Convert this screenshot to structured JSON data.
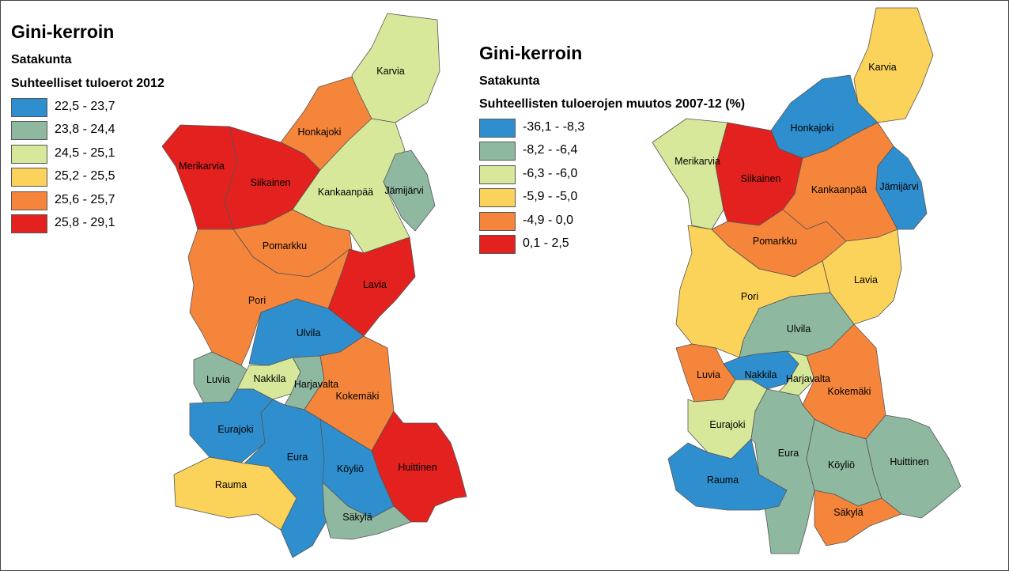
{
  "left_panel": {
    "title": "Gini-kerroin",
    "region": "Satakunta",
    "subtitle": "Suhteelliset tuloerot 2012",
    "legend": [
      {
        "label": "22,5 - 23,7",
        "color": "#2f8fce"
      },
      {
        "label": "23,8 - 24,4",
        "color": "#8fb8a0"
      },
      {
        "label": "24,5 - 25,1",
        "color": "#d8e89a"
      },
      {
        "label": "25,2 - 25,5",
        "color": "#fbd25a"
      },
      {
        "label": "25,6 - 25,7",
        "color": "#f5853a"
      },
      {
        "label": "25,8 - 29,1",
        "color": "#e3211e"
      }
    ],
    "municipalities": [
      {
        "name": "Karvia",
        "class": 2
      },
      {
        "name": "Honkajoki",
        "class": 4
      },
      {
        "name": "Merikarvia",
        "class": 5
      },
      {
        "name": "Siikainen",
        "class": 5
      },
      {
        "name": "Kankaanpää",
        "class": 2
      },
      {
        "name": "Jämijärvi",
        "class": 1
      },
      {
        "name": "Pomarkku",
        "class": 4
      },
      {
        "name": "Lavia",
        "class": 5
      },
      {
        "name": "Pori",
        "class": 4
      },
      {
        "name": "Ulvila",
        "class": 0
      },
      {
        "name": "Luvia",
        "class": 1
      },
      {
        "name": "Nakkila",
        "class": 2
      },
      {
        "name": "Harjavalta",
        "class": 1
      },
      {
        "name": "Kokemäki",
        "class": 4
      },
      {
        "name": "Eurajoki",
        "class": 0
      },
      {
        "name": "Eura",
        "class": 0
      },
      {
        "name": "Köyliö",
        "class": 0
      },
      {
        "name": "Huittinen",
        "class": 5
      },
      {
        "name": "Rauma",
        "class": 3
      },
      {
        "name": "Säkylä",
        "class": 1
      }
    ]
  },
  "right_panel": {
    "title": "Gini-kerroin",
    "region": "Satakunta",
    "subtitle": "Suhteellisten tuloerojen muutos 2007-12 (%)",
    "legend": [
      {
        "label": "-36,1 - -8,3",
        "color": "#2f8fce"
      },
      {
        "label": "-8,2 - -6,4",
        "color": "#8fb8a0"
      },
      {
        "label": "-6,3 - -6,0",
        "color": "#d8e89a"
      },
      {
        "label": "-5,9 - -5,0",
        "color": "#fbd25a"
      },
      {
        "label": "-4,9 - 0,0",
        "color": "#f5853a"
      },
      {
        "label": "0,1 - 2,5",
        "color": "#e3211e"
      }
    ],
    "municipalities": [
      {
        "name": "Karvia",
        "class": 3
      },
      {
        "name": "Honkajoki",
        "class": 0
      },
      {
        "name": "Merikarvia",
        "class": 2
      },
      {
        "name": "Siikainen",
        "class": 5
      },
      {
        "name": "Kankaanpää",
        "class": 4
      },
      {
        "name": "Jämijärvi",
        "class": 0
      },
      {
        "name": "Pomarkku",
        "class": 4
      },
      {
        "name": "Lavia",
        "class": 3
      },
      {
        "name": "Pori",
        "class": 3
      },
      {
        "name": "Ulvila",
        "class": 1
      },
      {
        "name": "Luvia",
        "class": 4
      },
      {
        "name": "Nakkila",
        "class": 0
      },
      {
        "name": "Harjavalta",
        "class": 2
      },
      {
        "name": "Kokemäki",
        "class": 4
      },
      {
        "name": "Eurajoki",
        "class": 2
      },
      {
        "name": "Eura",
        "class": 1
      },
      {
        "name": "Köyliö",
        "class": 1
      },
      {
        "name": "Huittinen",
        "class": 1
      },
      {
        "name": "Rauma",
        "class": 0
      },
      {
        "name": "Säkylä",
        "class": 4
      }
    ]
  }
}
